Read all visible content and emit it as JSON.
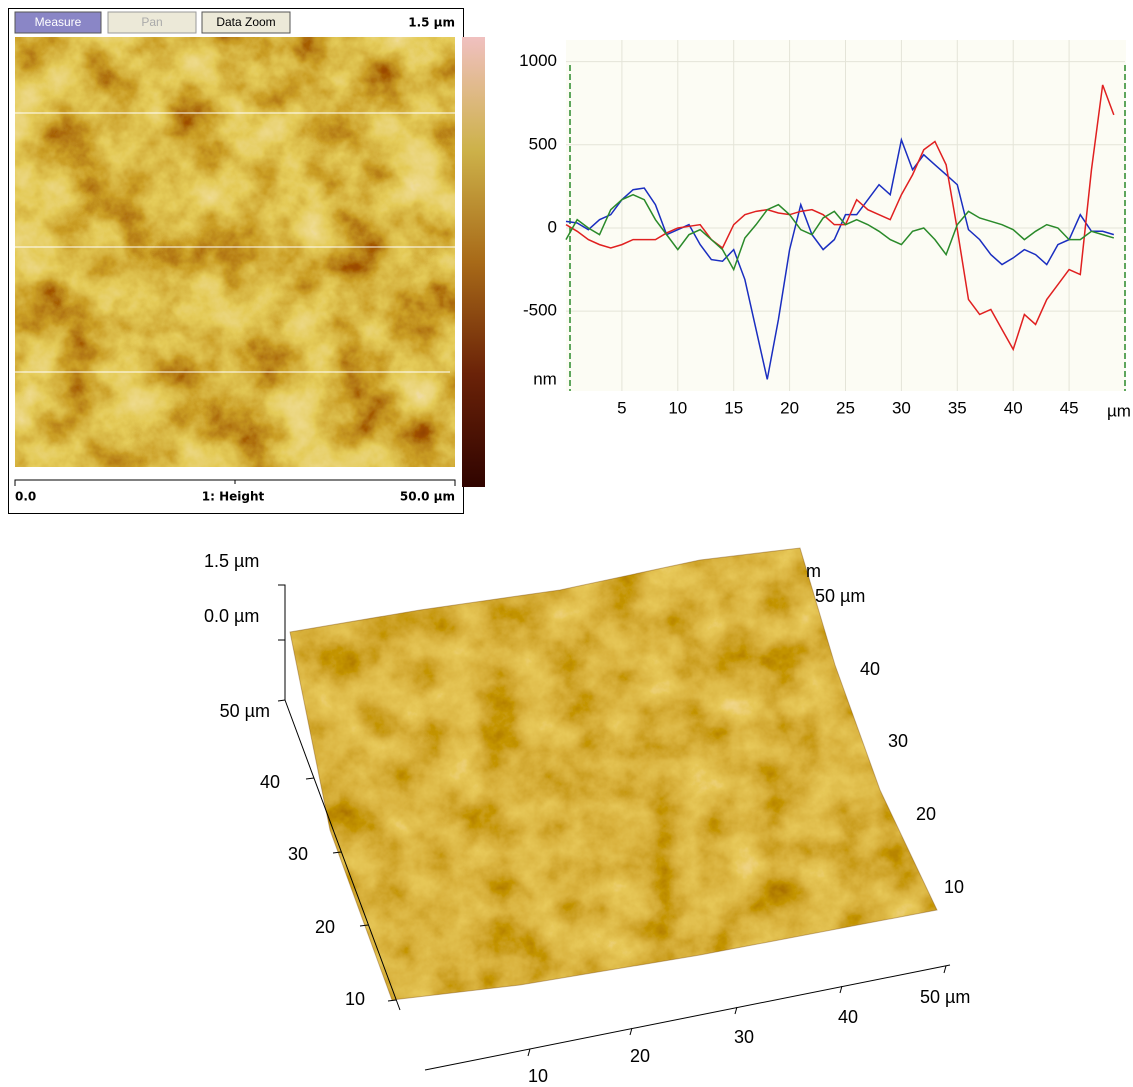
{
  "toolbar": {
    "buttons": [
      "Measure",
      "Pan",
      "Data Zoom"
    ]
  },
  "height_image": {
    "scale_max": "1.5 µm",
    "x_start": "0.0",
    "channel": "1: Height",
    "x_end": "50.0 µm"
  },
  "chart_data": {
    "type": "line",
    "x_label": "µm",
    "y_label": "nm",
    "x": [
      0,
      1,
      2,
      3,
      4,
      5,
      6,
      7,
      8,
      9,
      10,
      11,
      12,
      13,
      14,
      15,
      16,
      17,
      18,
      19,
      20,
      21,
      22,
      23,
      24,
      25,
      26,
      27,
      28,
      29,
      30,
      31,
      32,
      33,
      34,
      35,
      36,
      37,
      38,
      39,
      40,
      41,
      42,
      43,
      44,
      45,
      46,
      47,
      48,
      49
    ],
    "xlim": [
      0,
      50
    ],
    "xticks": [
      5,
      10,
      15,
      20,
      25,
      30,
      35,
      40,
      45
    ],
    "ylim": [
      -980,
      1130
    ],
    "yticks": [
      -500,
      0,
      500,
      1000
    ],
    "grid": true,
    "series": [
      {
        "color": "#1a2ec0",
        "values": [
          40,
          30,
          -10,
          50,
          80,
          170,
          230,
          240,
          140,
          -40,
          -10,
          20,
          -100,
          -190,
          -200,
          -130,
          -310,
          -610,
          -910,
          -550,
          -130,
          140,
          -40,
          -130,
          -70,
          80,
          80,
          170,
          260,
          200,
          530,
          350,
          440,
          380,
          320,
          260,
          -10,
          -70,
          -160,
          -220,
          -180,
          -130,
          -160,
          -220,
          -100,
          -70,
          80,
          -20,
          -20,
          -40
        ]
      },
      {
        "color": "#e02020",
        "values": [
          20,
          -20,
          -70,
          -100,
          -120,
          -100,
          -70,
          -70,
          -70,
          -30,
          0,
          10,
          20,
          -70,
          -120,
          20,
          80,
          100,
          110,
          90,
          80,
          100,
          110,
          80,
          20,
          20,
          170,
          110,
          80,
          50,
          200,
          320,
          470,
          520,
          380,
          -10,
          -430,
          -520,
          -490,
          -610,
          -730,
          -520,
          -580,
          -430,
          -340,
          -250,
          -280,
          350,
          860,
          680
        ]
      },
      {
        "color": "#2a8a2a",
        "values": [
          -70,
          50,
          0,
          -40,
          110,
          170,
          200,
          170,
          50,
          -40,
          -130,
          -40,
          -10,
          -70,
          -130,
          -250,
          -60,
          20,
          110,
          140,
          80,
          -10,
          -40,
          60,
          100,
          20,
          50,
          20,
          -20,
          -70,
          -100,
          -20,
          0,
          -70,
          -160,
          20,
          100,
          60,
          40,
          20,
          -10,
          -70,
          -20,
          20,
          0,
          -70,
          -70,
          -20,
          -40,
          -60
        ]
      }
    ]
  },
  "surface_3d": {
    "z_labels": [
      "1.5 µm",
      "0.0 µm"
    ],
    "left_labels": [
      "50 µm",
      "40",
      "30",
      "20",
      "10"
    ],
    "right_labels": [
      "m",
      "50 µm",
      "40",
      "30",
      "20",
      "10"
    ],
    "bottom_labels": [
      "10",
      "20",
      "30",
      "40",
      "50 µm"
    ]
  }
}
